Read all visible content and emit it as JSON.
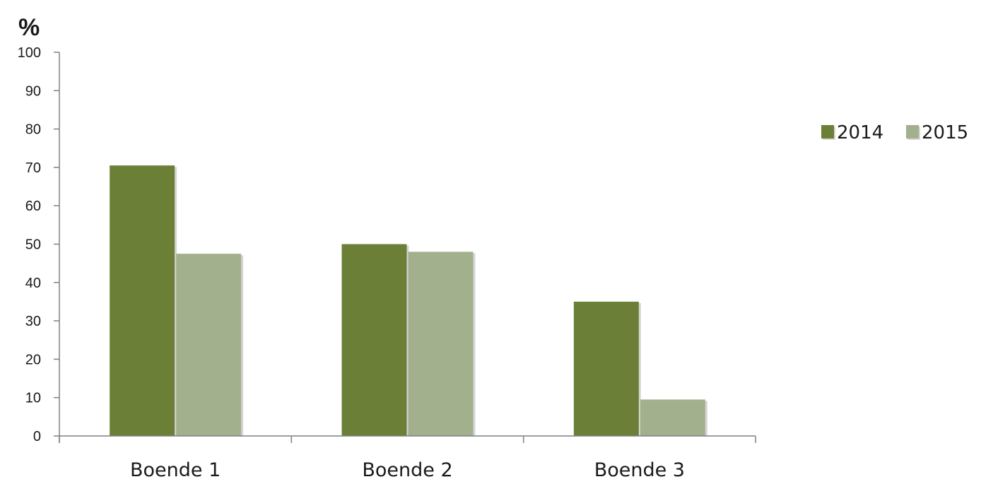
{
  "chart_data": {
    "type": "bar",
    "unit_label": "%",
    "categories": [
      "Boende 1",
      "Boende 2",
      "Boende 3"
    ],
    "series": [
      {
        "name": "2014",
        "values": [
          70.5,
          50,
          35
        ],
        "color": "#6b7f36"
      },
      {
        "name": "2015",
        "values": [
          47.5,
          48,
          9.5
        ],
        "color": "#a3b08d"
      }
    ],
    "ylim": [
      0,
      100
    ],
    "yticks": [
      0,
      10,
      20,
      30,
      40,
      50,
      60,
      70,
      80,
      90,
      100
    ],
    "grid": false,
    "legend_position": "right"
  }
}
